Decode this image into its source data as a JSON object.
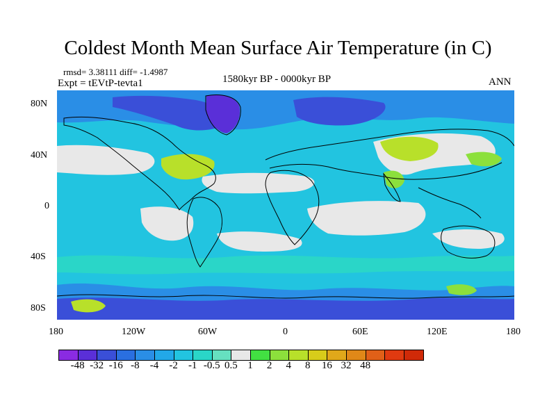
{
  "title": "Coldest Month Mean Surface Air Temperature (in C)",
  "stats": {
    "rmsd": "rmsd= 3.38111 diff= -1.4987"
  },
  "experiment": "Expt = tEVtP-tevta1",
  "period": "1580kyr BP - 0000kyr BP",
  "season": "ANN",
  "lat_ticks": [
    "80N",
    "40N",
    "0",
    "40S",
    "80S"
  ],
  "lon_ticks": [
    "180",
    "120W",
    "60W",
    "0",
    "60E",
    "120E",
    "180"
  ],
  "colorbar": {
    "labels": [
      "-48",
      "-32",
      "-16",
      "-8",
      "-4",
      "-2",
      "-1",
      "-0.5",
      "0.5",
      "1",
      "2",
      "4",
      "8",
      "16",
      "32",
      "48"
    ],
    "colors": [
      "#8a2be2",
      "#5a2fd8",
      "#3a4fd8",
      "#2a6fe0",
      "#2a8ee6",
      "#22a8e8",
      "#22c4e0",
      "#2ad6c8",
      "#66e0c0",
      "#e8e8e8",
      "#42e042",
      "#8ce03c",
      "#b8e02a",
      "#d8cc1a",
      "#e0a81a",
      "#e08818",
      "#e06018",
      "#e03a10",
      "#d02a08"
    ]
  },
  "field_colors": {
    "ocean_base": "#22c4e0",
    "neutral": "#e8e8e8",
    "cold_light": "#2a8ee6",
    "cold_deep": "#3a4fd8",
    "cold_extreme": "#5a2fd8",
    "mint": "#2ad6c8",
    "warm_green": "#8ce03c",
    "warm_yellow": "#b8e02a",
    "coast_line": "#000000"
  }
}
